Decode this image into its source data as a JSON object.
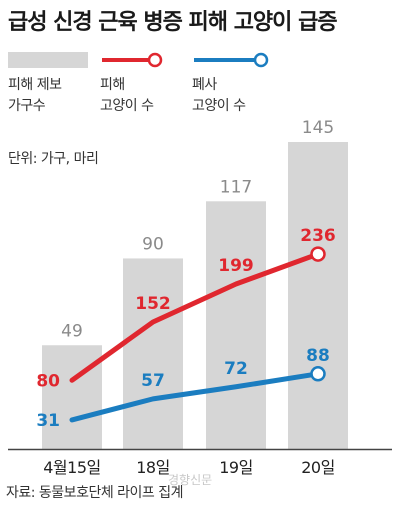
{
  "title": "급성 신경 근육 병증 피해 고양이 급증",
  "legend": {
    "bar_line1": "피해 제보",
    "bar_line2": "가구수",
    "red_line1": "피해",
    "red_line2": "고양이 수",
    "blue_line1": "폐사",
    "blue_line2": "고양이 수"
  },
  "unit_text": "단위: 가구, 마리",
  "source_text": "자료: 동물보호단체 라이프 집계",
  "credit_text": "경향신문",
  "colors": {
    "bar": "#d6d6d6",
    "red": "#e0272f",
    "blue": "#1b7dc0",
    "bar_label": "#8a8a8a",
    "axis": "#444444"
  },
  "chart_data": {
    "type": "bar",
    "categories": [
      "4월15일",
      "18일",
      "19일",
      "20일"
    ],
    "series": [
      {
        "name": "피해 제보 가구수",
        "kind": "bar",
        "values": [
          49,
          90,
          117,
          145
        ]
      },
      {
        "name": "피해 고양이 수",
        "kind": "line",
        "values": [
          80,
          152,
          199,
          236
        ]
      },
      {
        "name": "폐사 고양이 수",
        "kind": "line",
        "values": [
          31,
          57,
          72,
          88
        ]
      }
    ],
    "legend_position": "top",
    "grid": false
  }
}
